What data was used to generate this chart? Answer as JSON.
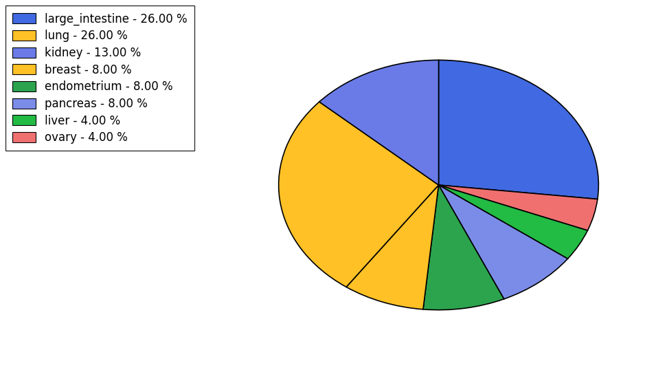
{
  "legend_labels": [
    "large_intestine - 26.00 %",
    "lung - 26.00 %",
    "kidney - 13.00 %",
    "breast - 8.00 %",
    "endometrium - 8.00 %",
    "pancreas - 8.00 %",
    "liver - 4.00 %",
    "ovary - 4.00 %"
  ],
  "legend_colors": [
    "#4169e1",
    "#ffc125",
    "#6a7be8",
    "#ffc125",
    "#2ca44e",
    "#7b8ce8",
    "#22bb44",
    "#f07070"
  ],
  "plot_order": [
    "large_intestine",
    "ovary",
    "liver",
    "pancreas",
    "endometrium",
    "breast",
    "lung",
    "kidney"
  ],
  "plot_values": [
    26.0,
    4.0,
    4.0,
    8.0,
    8.0,
    8.0,
    26.0,
    13.0
  ],
  "plot_colors": [
    "#4169e1",
    "#f07070",
    "#22bb44",
    "#7b8ce8",
    "#2ca44e",
    "#ffc125",
    "#ffc125",
    "#6a7be8"
  ],
  "startangle": 90,
  "figsize": [
    9.39,
    5.38
  ],
  "dpi": 100
}
